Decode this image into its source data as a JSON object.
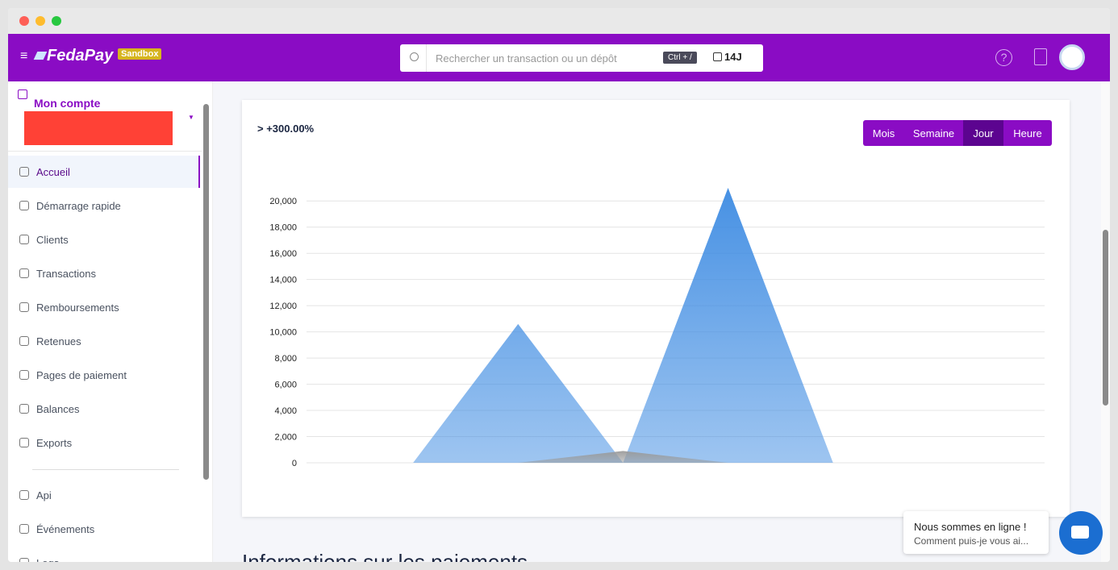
{
  "header": {
    "brand": "FedaPay",
    "badge": "Sandbox",
    "search_placeholder": "Rechercher un transaction ou un dépôt",
    "shortcut": "Ctrl + /",
    "period": "14J"
  },
  "sidebar": {
    "account": "Mon compte",
    "items": [
      "Accueil",
      "Démarrage rapide",
      "Clients",
      "Transactions",
      "Remboursements",
      "Retenues",
      "Pages de paiement",
      "Balances",
      "Exports"
    ],
    "dev_items": [
      "Api",
      "Événements",
      "Logs"
    ]
  },
  "summary": "> +300.00%",
  "periods": [
    "Mois",
    "Semaine",
    "Jour",
    "Heure"
  ],
  "active_period": "Jour",
  "chart_data": {
    "type": "area",
    "categories": [
      null,
      null,
      null,
      null,
      null,
      null,
      null,
      null
    ],
    "series": [
      {
        "color": "#3d8be2",
        "values": [
          0,
          0,
          10600,
          0,
          21000,
          0,
          0,
          0
        ]
      },
      {
        "color": "#9a9a9a",
        "values": [
          0,
          0,
          0,
          900,
          0,
          0,
          0,
          0
        ]
      }
    ],
    "ylim": [
      0,
      21000
    ],
    "yticks": [
      0,
      {
        "value": 2000,
        "label": "2,000"
      },
      {
        "value": 4000,
        "label": "4,000"
      },
      {
        "value": 6000,
        "label": "6,000"
      },
      {
        "value": 8000,
        "label": "8,000"
      },
      {
        "value": 10000,
        "label": "10,000"
      },
      {
        "value": 12000,
        "label": "12,000"
      },
      {
        "value": 14000,
        "label": "14,000"
      },
      {
        "value": 16000,
        "label": "16,000"
      },
      {
        "value": 18000,
        "label": "18,000"
      },
      {
        "value": 20000,
        "label": "20,000"
      }
    ],
    "grid": true
  },
  "section_title": "Informations sur les paiements",
  "chat": {
    "title": "Nous sommes en ligne !",
    "message": "Comment puis-je vous ai..."
  }
}
